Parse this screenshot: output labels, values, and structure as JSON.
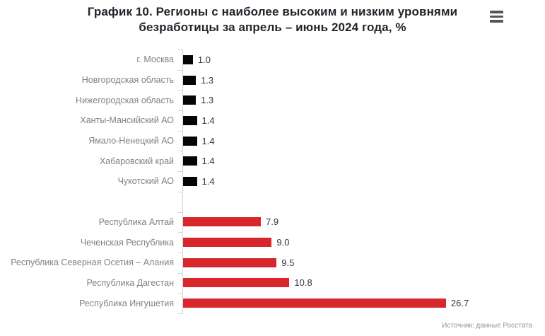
{
  "header": {
    "title_line1": "График 10. Регионы с наиболее высоким и низким уровнями",
    "title_line2": "безработицы за апрель – июнь 2024 года, %"
  },
  "chart_data": {
    "type": "bar",
    "orientation": "horizontal",
    "title": "График 10. Регионы с наиболее высоким и низким уровнями безработицы за апрель – июнь 2024 года, %",
    "xlabel": "",
    "ylabel": "",
    "xlim": [
      0,
      28
    ],
    "grid": false,
    "value_labels": true,
    "legend": "none",
    "axis_color": "#cfd3d9",
    "bar_colors": {
      "low": "#050505",
      "high": "#d7262c"
    },
    "categories": [
      "г. Москва",
      "Новгородская область",
      "Нижегородская область",
      "Ханты-Мансийский АО",
      "Ямало-Ненецкий АО",
      "Хабаровский край",
      "Чукотский АО",
      "Республика Алтай",
      "Чеченская Республика",
      "Республика Северная Осетия – Алания",
      "Республика Дагестан",
      "Республика Ингушетия"
    ],
    "values": [
      1.0,
      1.3,
      1.3,
      1.4,
      1.4,
      1.4,
      1.4,
      7.9,
      9.0,
      9.5,
      10.8,
      26.7
    ],
    "group_gap_after_index": 6,
    "rows": [
      {
        "label": "г. Москва",
        "value": 1.0,
        "display": "1.0",
        "group": "low"
      },
      {
        "label": "Новгородская область",
        "value": 1.3,
        "display": "1.3",
        "group": "low"
      },
      {
        "label": "Нижегородская область",
        "value": 1.3,
        "display": "1.3",
        "group": "low"
      },
      {
        "label": "Ханты-Мансийский АО",
        "value": 1.4,
        "display": "1.4",
        "group": "low"
      },
      {
        "label": "Ямало-Ненецкий АО",
        "value": 1.4,
        "display": "1.4",
        "group": "low"
      },
      {
        "label": "Хабаровский край",
        "value": 1.4,
        "display": "1.4",
        "group": "low"
      },
      {
        "label": "Чукотский АО",
        "value": 1.4,
        "display": "1.4",
        "group": "low"
      },
      {
        "label": "Республика Алтай",
        "value": 7.9,
        "display": "7.9",
        "group": "high"
      },
      {
        "label": "Чеченская Республика",
        "value": 9.0,
        "display": "9.0",
        "group": "high"
      },
      {
        "label": "Республика Северная Осетия – Алания",
        "value": 9.5,
        "display": "9.5",
        "group": "high"
      },
      {
        "label": "Республика Дагестан",
        "value": 10.8,
        "display": "10.8",
        "group": "high"
      },
      {
        "label": "Республика Ингушетия",
        "value": 26.7,
        "display": "26.7",
        "group": "high"
      }
    ]
  },
  "footer": {
    "source": "Источник: данные Росстата"
  }
}
